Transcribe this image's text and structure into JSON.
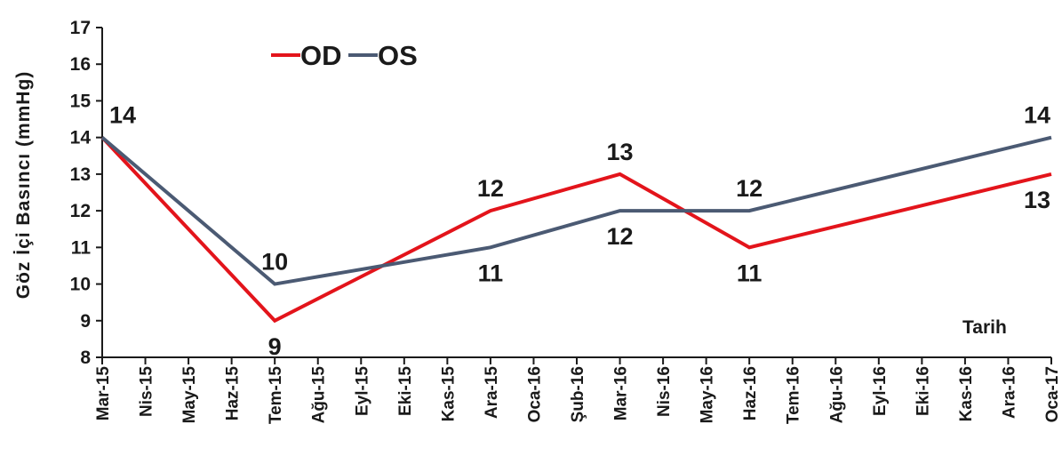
{
  "chart_data": {
    "type": "line",
    "ylabel": "Göz İçi Basıncı (mmHg)",
    "xlabel": "Tarih",
    "ylim": [
      8,
      17
    ],
    "yticks": [
      8,
      9,
      10,
      11,
      12,
      13,
      14,
      15,
      16,
      17
    ],
    "grid": false,
    "legend_position": "top-left",
    "categories": [
      "Mar-15",
      "Nis-15",
      "May-15",
      "Haz-15",
      "Tem-15",
      "Ağu-15",
      "Eyl-15",
      "Eki-15",
      "Kas-15",
      "Ara-15",
      "Oca-16",
      "Şub-16",
      "Mar-16",
      "Nis-16",
      "May-16",
      "Haz-16",
      "Tem-16",
      "Ağu-16",
      "Eyl-16",
      "Eki-16",
      "Kas-16",
      "Ara-16",
      "Oca-17"
    ],
    "series": [
      {
        "name": "OD",
        "color": "#e3141b",
        "points": [
          {
            "x": "Mar-15",
            "y": 14,
            "label": ""
          },
          {
            "x": "Tem-15",
            "y": 9,
            "label": "9"
          },
          {
            "x": "Ara-15",
            "y": 12,
            "label": "12"
          },
          {
            "x": "Mar-16",
            "y": 13,
            "label": "13"
          },
          {
            "x": "Haz-16",
            "y": 11,
            "label": "11"
          },
          {
            "x": "Oca-17",
            "y": 13,
            "label": "13"
          }
        ]
      },
      {
        "name": "OS",
        "color": "#4b5a73",
        "points": [
          {
            "x": "Mar-15",
            "y": 14,
            "label": "14"
          },
          {
            "x": "Tem-15",
            "y": 10,
            "label": "10"
          },
          {
            "x": "Ara-15",
            "y": 11,
            "label": "11"
          },
          {
            "x": "Mar-16",
            "y": 12,
            "label": "12"
          },
          {
            "x": "Haz-16",
            "y": 12,
            "label": "12"
          },
          {
            "x": "Oca-17",
            "y": 14,
            "label": "14"
          }
        ]
      }
    ]
  }
}
